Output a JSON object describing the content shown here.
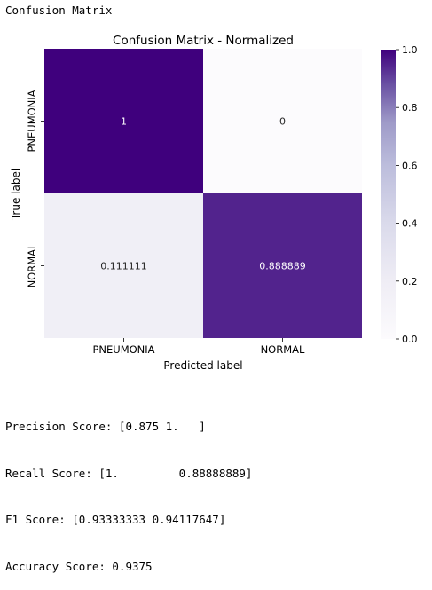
{
  "output": {
    "header": "Confusion Matrix",
    "scores": [
      "Precision Score: [0.875 1.   ]",
      "Recall Score: [1.         0.88888889]",
      "F1 Score: [0.93333333 0.94117647]",
      "Accuracy Score: 0.9375"
    ]
  },
  "chart_data": {
    "type": "heatmap",
    "title": "Confusion Matrix - Normalized",
    "xlabel": "Predicted label",
    "ylabel": "True label",
    "x_categories": [
      "PNEUMONIA",
      "NORMAL"
    ],
    "y_categories": [
      "PNEUMONIA",
      "NORMAL"
    ],
    "values": [
      [
        1,
        0
      ],
      [
        0.111111,
        0.888889
      ]
    ],
    "cell_labels": [
      [
        "1",
        "0"
      ],
      [
        "0.111111",
        "0.888889"
      ]
    ],
    "colormap": "Purples",
    "vmin": 0,
    "vmax": 1,
    "colorbar_ticks": [
      0.0,
      0.2,
      0.4,
      0.6,
      0.8,
      1.0
    ],
    "colorbar_tick_labels": [
      "0.0",
      "0.2",
      "0.4",
      "0.6",
      "0.8",
      "1.0"
    ]
  }
}
